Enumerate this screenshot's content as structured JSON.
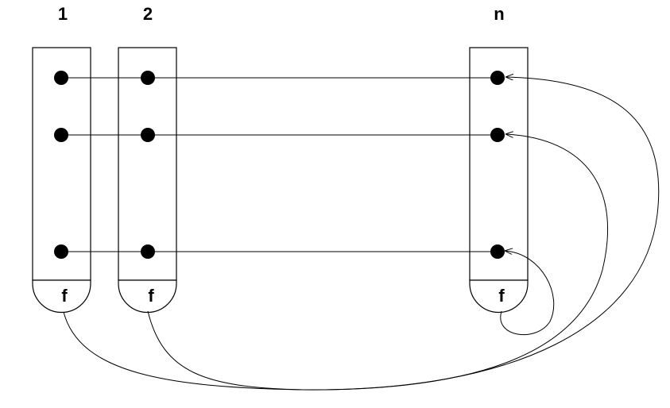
{
  "diagram": {
    "columns": [
      {
        "label": "1",
        "function_label": "f"
      },
      {
        "label": "2",
        "function_label": "f"
      },
      {
        "label": "n",
        "function_label": "f"
      }
    ],
    "rows": 3,
    "colors": {
      "stroke": "#000000",
      "background": "#ffffff"
    }
  }
}
